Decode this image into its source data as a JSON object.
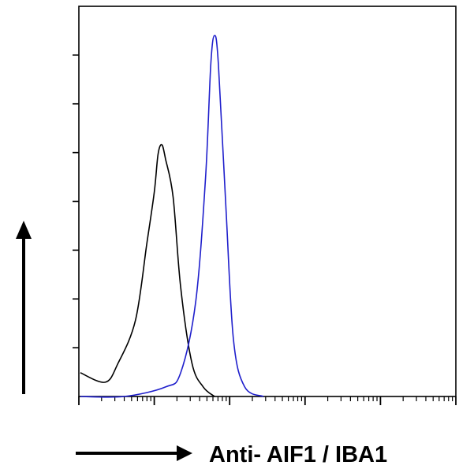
{
  "chart_data": {
    "type": "line",
    "title": "",
    "xlabel": "Anti- AIF1 / IBA1",
    "ylabel": "",
    "x_scale": "log",
    "y_ticks_count": 7,
    "grid": false,
    "series": [
      {
        "color": "#000000",
        "points": [
          [
            0.02,
            0.05
          ],
          [
            0.35,
            0.03
          ],
          [
            0.52,
            0.07
          ],
          [
            0.75,
            0.16
          ],
          [
            0.9,
            0.32
          ],
          [
            1.0,
            0.43
          ],
          [
            1.05,
            0.51
          ],
          [
            1.1,
            0.53
          ],
          [
            1.15,
            0.5
          ],
          [
            1.25,
            0.42
          ],
          [
            1.35,
            0.23
          ],
          [
            1.5,
            0.07
          ],
          [
            1.65,
            0.02
          ],
          [
            1.8,
            0.0
          ]
        ]
      },
      {
        "color": "#1f1fcc",
        "points": [
          [
            0.02,
            0.0
          ],
          [
            0.6,
            0.0
          ],
          [
            1.15,
            0.02
          ],
          [
            1.35,
            0.05
          ],
          [
            1.55,
            0.2
          ],
          [
            1.68,
            0.46
          ],
          [
            1.75,
            0.7
          ],
          [
            1.8,
            0.76
          ],
          [
            1.85,
            0.7
          ],
          [
            1.95,
            0.4
          ],
          [
            2.05,
            0.12
          ],
          [
            2.2,
            0.02
          ],
          [
            2.45,
            0.0
          ]
        ]
      }
    ]
  }
}
